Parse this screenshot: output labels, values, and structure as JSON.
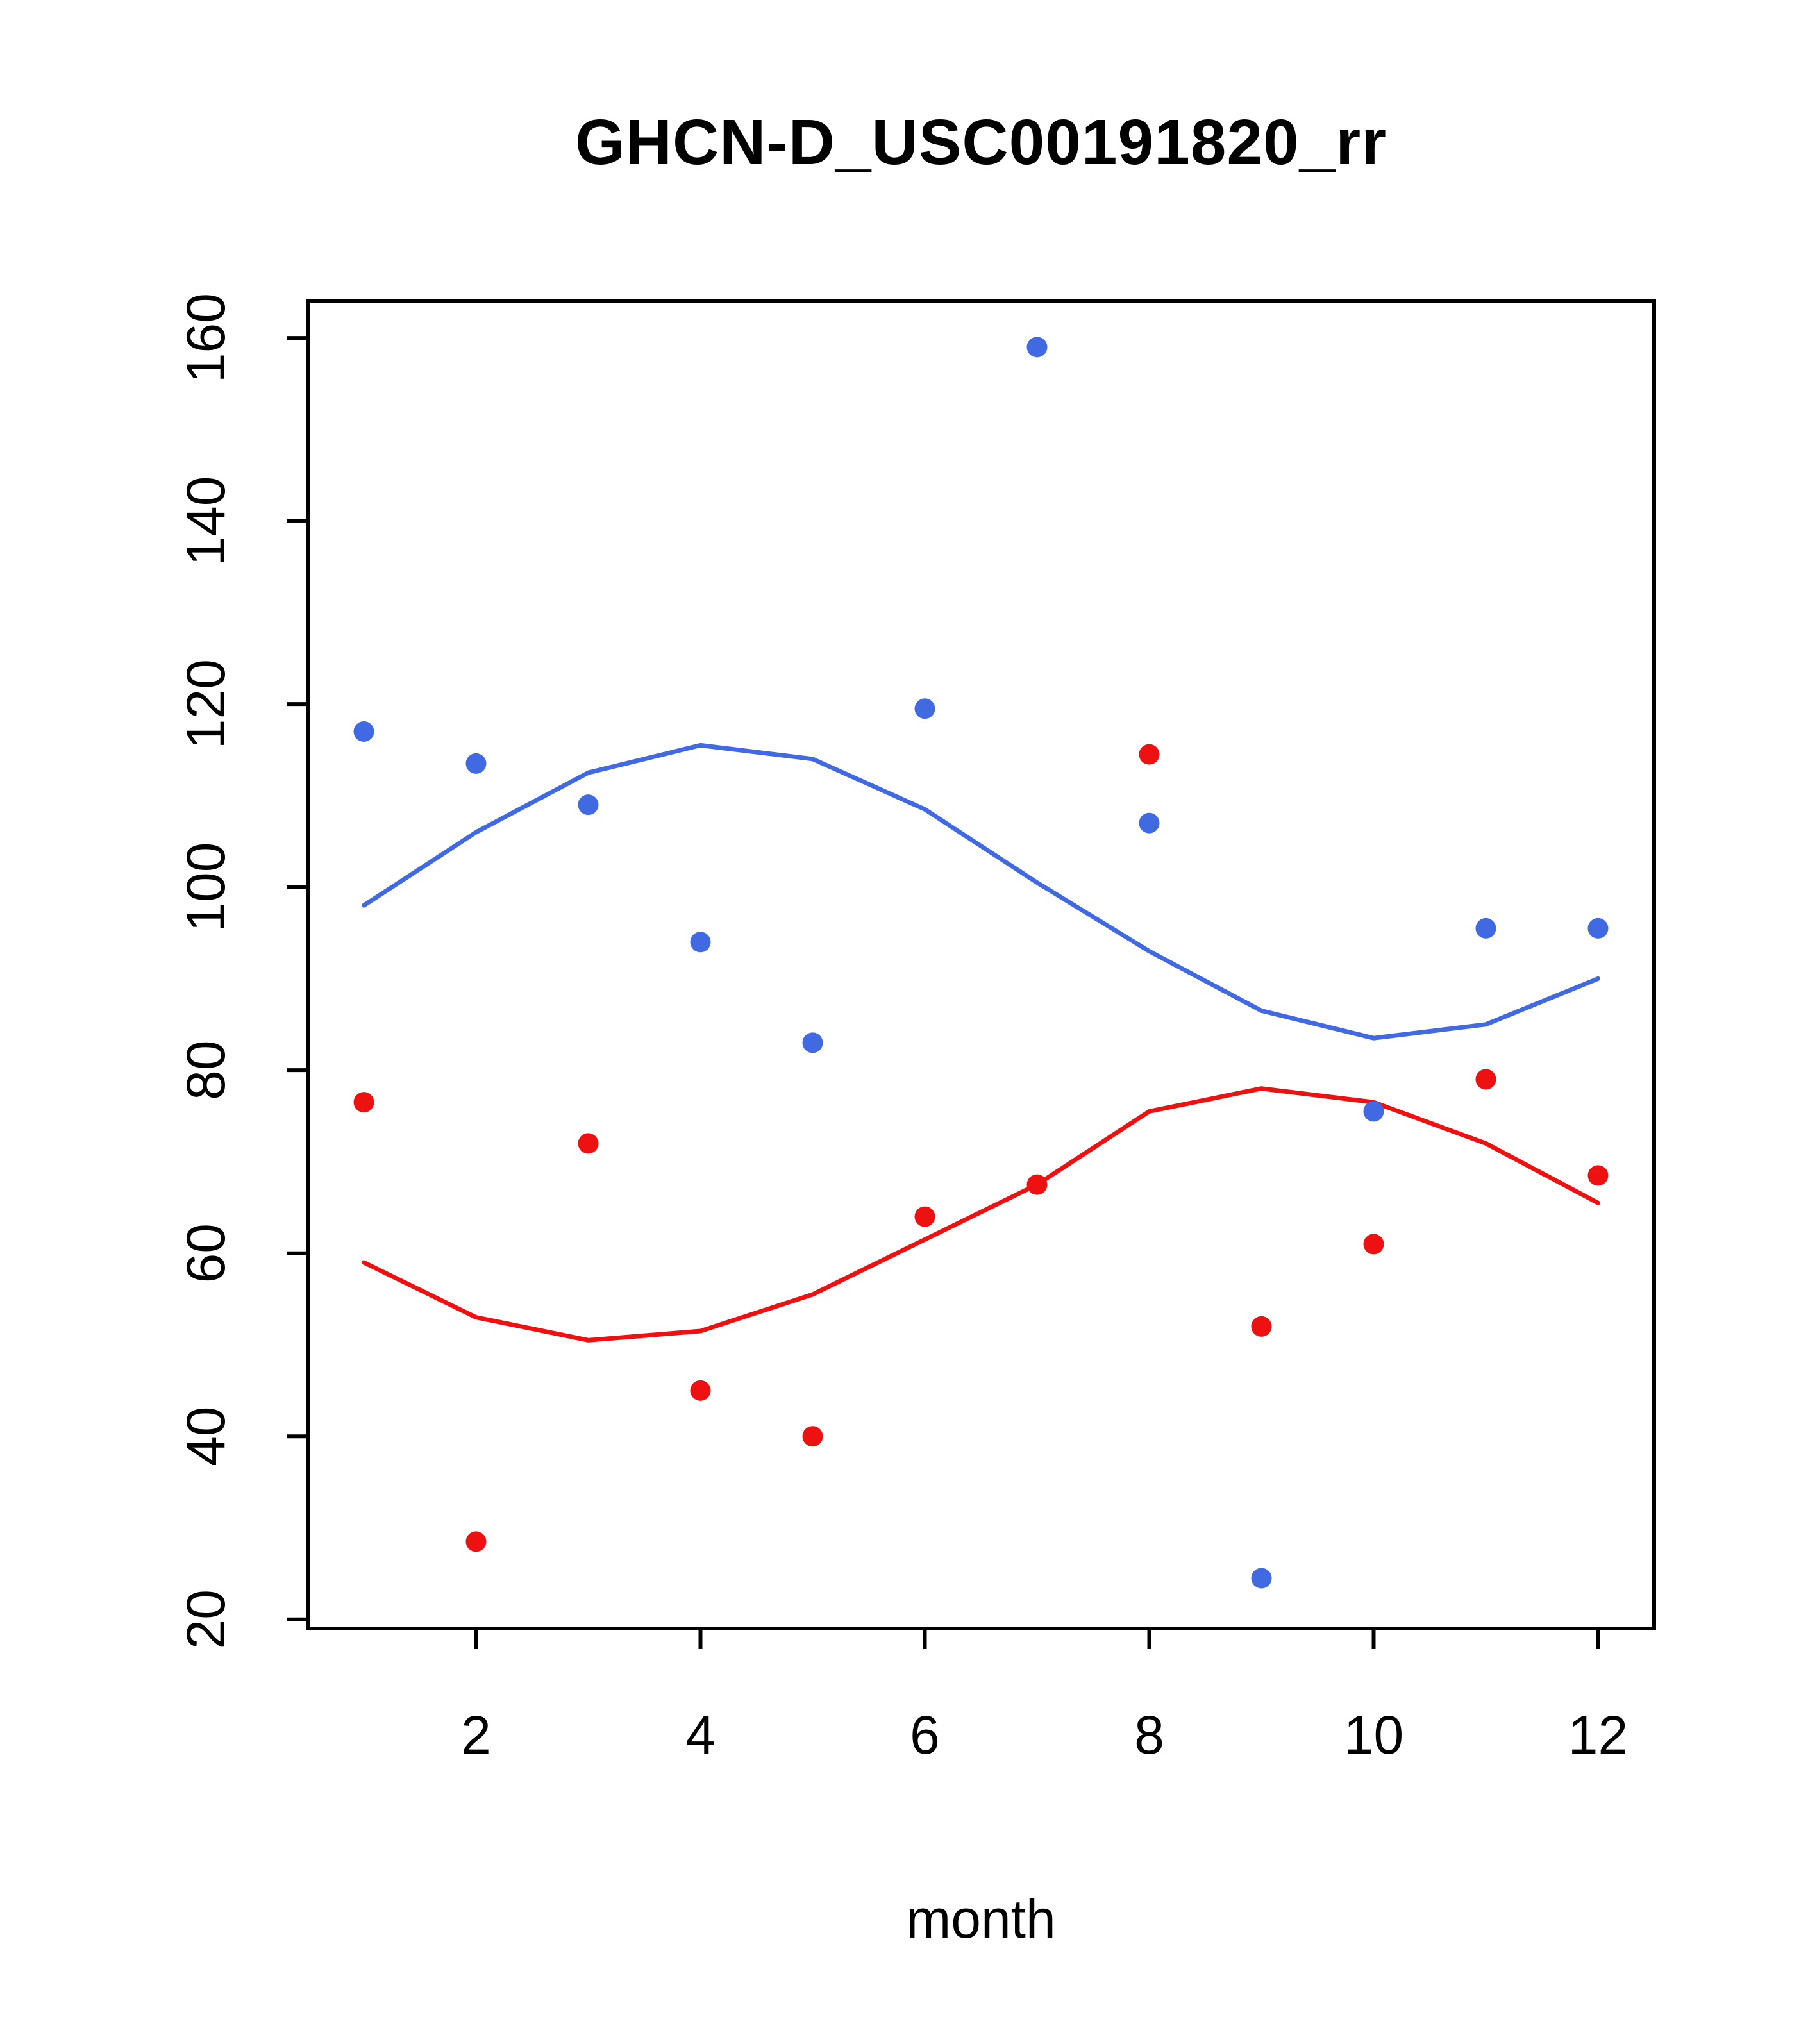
{
  "page": {
    "background_color": "#ffffff",
    "text_color": "#000000"
  },
  "chart_data": {
    "type": "scatter",
    "title": "GHCN-D_USC00191820_rr",
    "xlabel": "month",
    "ylabel": "",
    "xlim": [
      0.5,
      12.5
    ],
    "ylim": [
      19,
      164
    ],
    "x_ticks": [
      2,
      4,
      6,
      8,
      10,
      12
    ],
    "y_ticks": [
      20,
      40,
      60,
      80,
      100,
      120,
      140,
      160
    ],
    "grid": false,
    "legend": "none",
    "colors": {
      "blue": "#4169E1",
      "red": "#EE1111",
      "axis": "#000000"
    },
    "series": [
      {
        "name": "blue-points",
        "kind": "points",
        "color": "#4169E1",
        "x": [
          1,
          2,
          3,
          4,
          5,
          6,
          7,
          8,
          9,
          10,
          11,
          12
        ],
        "y": [
          117,
          113.5,
          109,
          94,
          83,
          119.5,
          159,
          107,
          24.5,
          75.5,
          95.5,
          95.5
        ]
      },
      {
        "name": "red-points",
        "kind": "points",
        "color": "#EE1111",
        "x": [
          1,
          2,
          3,
          4,
          5,
          6,
          7,
          8,
          9,
          10,
          11,
          12
        ],
        "y": [
          76.5,
          28.5,
          72,
          45,
          40,
          64,
          67.5,
          114.5,
          52,
          61,
          79,
          68.5
        ]
      },
      {
        "name": "blue-smooth-line",
        "kind": "line",
        "color": "#4169E1",
        "x": [
          1,
          2,
          3,
          4,
          5,
          6,
          7,
          8,
          9,
          10,
          11,
          12
        ],
        "y": [
          98,
          106,
          112.5,
          115.5,
          114,
          108.5,
          100.5,
          93,
          86.5,
          83.5,
          85,
          90
        ]
      },
      {
        "name": "red-smooth-line",
        "kind": "line",
        "color": "#EE1111",
        "x": [
          1,
          2,
          3,
          4,
          5,
          6,
          7,
          8,
          9,
          10,
          11,
          12
        ],
        "y": [
          59,
          53,
          50.5,
          51.5,
          55.5,
          61.5,
          67.5,
          75.5,
          78,
          76.5,
          72,
          65.5
        ]
      }
    ]
  }
}
